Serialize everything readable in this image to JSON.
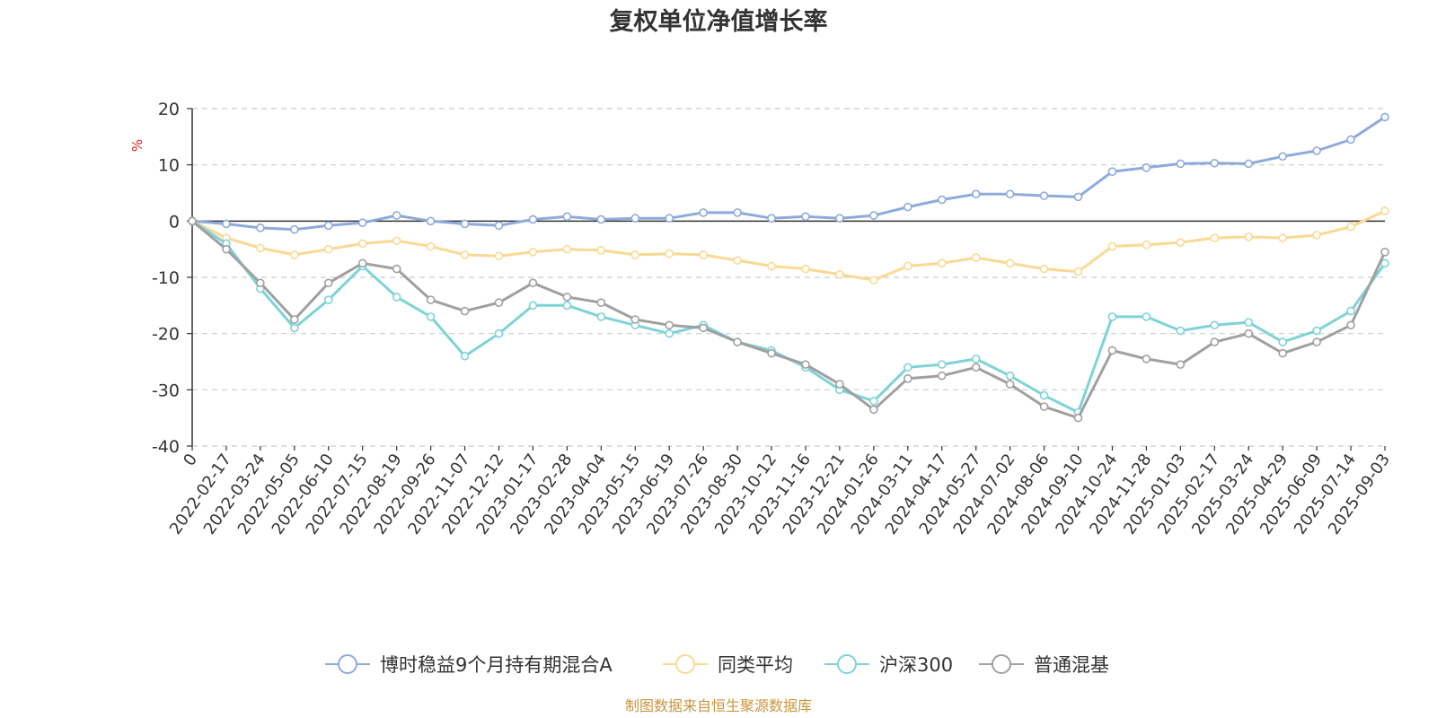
{
  "chart_data": {
    "type": "line",
    "title": "复权单位净值增长率",
    "ylabel": "%",
    "ylim": [
      -40,
      20
    ],
    "yticks": [
      "20",
      "10",
      "0",
      "-10",
      "-20",
      "-30",
      "-40"
    ],
    "x_tick_labels": [
      "0",
      "2022-02-17",
      "2022-03-24",
      "2022-05-05",
      "2022-06-10",
      "2022-07-15",
      "2022-08-19",
      "2022-09-26",
      "2022-11-07",
      "2022-12-12",
      "2023-01-17",
      "2023-02-28",
      "2023-04-04",
      "2023-05-15",
      "2023-06-19",
      "2023-07-26",
      "2023-08-30",
      "2023-10-12",
      "2023-11-16",
      "2023-12-21",
      "2024-01-26",
      "2024-03-11",
      "2024-04-17",
      "2024-05-27",
      "2024-07-02",
      "2024-08-06",
      "2024-09-10",
      "2024-10-24",
      "2024-11-28",
      "2025-01-03",
      "2025-02-17",
      "2025-03-24",
      "2025-04-29",
      "2025-06-09",
      "2025-07-14",
      "2025-09-03"
    ],
    "grid": true,
    "legend_position": "bottom",
    "series": [
      {
        "name": "博时稳益9个月持有期混合A",
        "color": "#8eaadb",
        "values": [
          0,
          -0.5,
          -1.2,
          -1.5,
          -0.8,
          -0.3,
          1.0,
          0.0,
          -0.5,
          -0.8,
          0.3,
          0.8,
          0.3,
          0.5,
          0.5,
          1.5,
          1.5,
          0.5,
          0.8,
          0.5,
          1.0,
          2.5,
          3.8,
          4.8,
          4.8,
          4.5,
          4.3,
          8.8,
          9.5,
          10.2,
          10.3,
          10.2,
          11.5,
          12.5,
          14.5,
          18.5
        ]
      },
      {
        "name": "同类平均",
        "color": "#fad993",
        "values": [
          0,
          -3.0,
          -4.8,
          -6.0,
          -5.0,
          -4.0,
          -3.5,
          -4.5,
          -6.0,
          -6.2,
          -5.5,
          -5.0,
          -5.2,
          -6.0,
          -5.8,
          -6.0,
          -7.0,
          -8.0,
          -8.5,
          -9.5,
          -10.5,
          -8.0,
          -7.5,
          -6.5,
          -7.5,
          -8.5,
          -9.0,
          -4.5,
          -4.2,
          -3.8,
          -3.0,
          -2.8,
          -3.0,
          -2.5,
          -1.0,
          1.8
        ]
      },
      {
        "name": "沪深300",
        "color": "#7dd3d6",
        "values": [
          0,
          -4.0,
          -12.0,
          -19.0,
          -14.0,
          -8.0,
          -13.5,
          -17.0,
          -24.0,
          -20.0,
          -15.0,
          -15.0,
          -17.0,
          -18.5,
          -20.0,
          -18.5,
          -21.5,
          -23.0,
          -26.0,
          -30.0,
          -32.0,
          -26.0,
          -25.5,
          -24.5,
          -27.5,
          -31.0,
          -34.0,
          -17.0,
          -17.0,
          -19.5,
          -18.5,
          -18.0,
          -21.5,
          -19.5,
          -16.0,
          -7.5
        ]
      },
      {
        "name": "普通混基",
        "color": "#a0a0a0",
        "values": [
          0,
          -5.0,
          -11.0,
          -17.5,
          -11.0,
          -7.5,
          -8.5,
          -14.0,
          -16.0,
          -14.5,
          -11.0,
          -13.5,
          -14.5,
          -17.5,
          -18.5,
          -19.0,
          -21.5,
          -23.5,
          -25.5,
          -29.0,
          -33.5,
          -28.0,
          -27.5,
          -26.0,
          -29.0,
          -33.0,
          -35.0,
          -23.0,
          -24.5,
          -25.5,
          -21.5,
          -20.0,
          -23.5,
          -21.5,
          -18.5,
          -5.5
        ]
      }
    ]
  },
  "source_text": "制图数据来自恒生聚源数据库"
}
